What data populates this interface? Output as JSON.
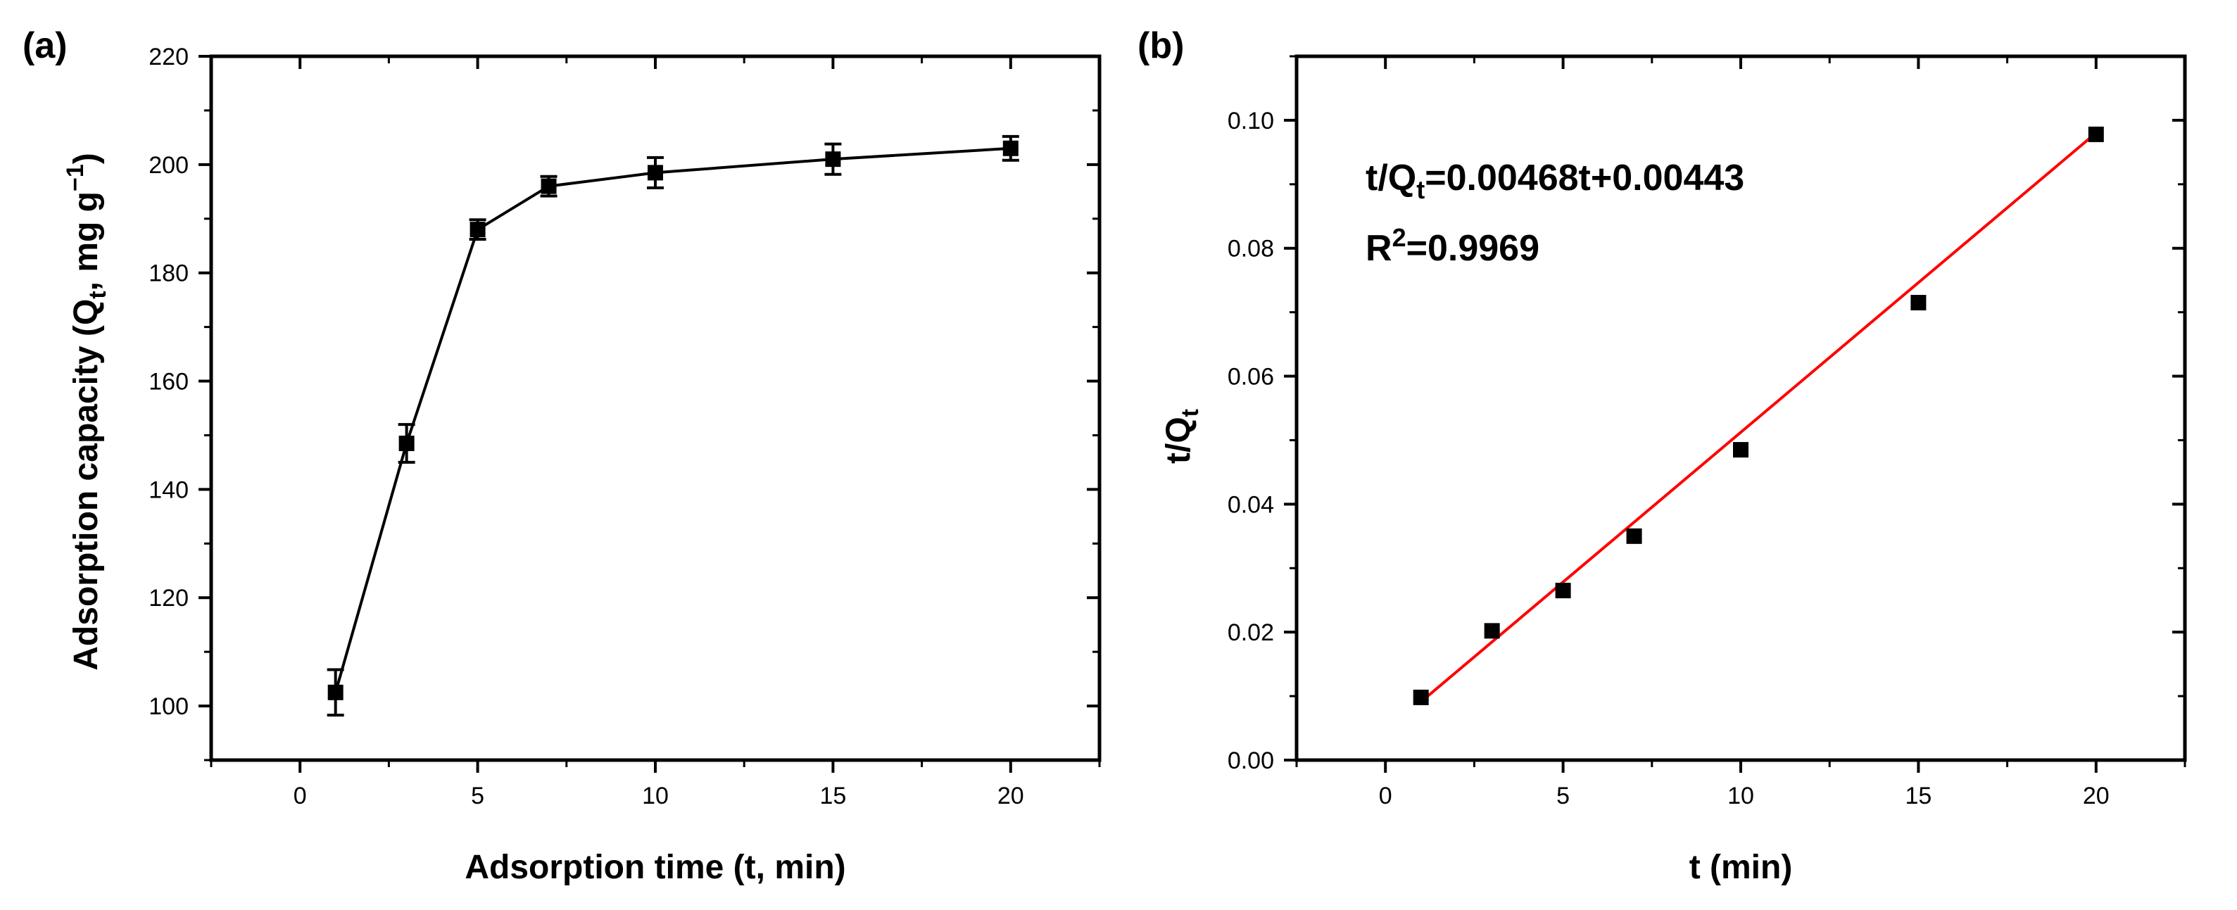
{
  "chart_data": [
    {
      "type": "line",
      "panel_label": "(a)",
      "title": "",
      "xlabel": "Adsorption time (t, min)",
      "ylabel": "Adsorption capacity (Q",
      "ylabel_sub": "t",
      "ylabel_rest": ", mg g",
      "ylabel_sup": "−1",
      "ylabel_close": ")",
      "xlim": [
        -2.5,
        22.5
      ],
      "ylim": [
        90,
        220
      ],
      "xticks": [
        0,
        5,
        10,
        15,
        20
      ],
      "yticks": [
        100,
        120,
        140,
        160,
        180,
        200,
        220
      ],
      "xtick_labels": [
        "0",
        "5",
        "10",
        "15",
        "20"
      ],
      "ytick_labels": [
        "100",
        "120",
        "140",
        "160",
        "180",
        "200",
        "220"
      ],
      "grid": false,
      "series": [
        {
          "name": "Qt",
          "x": [
            1,
            3,
            5,
            7,
            10,
            15,
            20
          ],
          "y": [
            102.5,
            148.5,
            188,
            196,
            198.5,
            201,
            203
          ],
          "yerr": [
            4.2,
            3.5,
            1.8,
            1.8,
            2.8,
            2.8,
            2.2
          ],
          "color": "#000000",
          "marker": "square"
        }
      ]
    },
    {
      "type": "scatter",
      "panel_label": "(b)",
      "title": "",
      "xlabel": "t (min)",
      "ylabel": "t/Q",
      "ylabel_sub": "t",
      "xlim": [
        -2.5,
        22.5
      ],
      "ylim": [
        0,
        0.11
      ],
      "xticks": [
        0,
        5,
        10,
        15,
        20
      ],
      "yticks": [
        0,
        0.02,
        0.04,
        0.06,
        0.08,
        0.1
      ],
      "xtick_labels": [
        "0",
        "5",
        "10",
        "15",
        "20"
      ],
      "ytick_labels": [
        "0.00",
        "0.02",
        "0.04",
        "0.06",
        "0.08",
        "0.10"
      ],
      "grid": false,
      "series": [
        {
          "name": "t/Qt",
          "x": [
            1,
            3,
            5,
            7,
            10,
            15,
            20
          ],
          "y": [
            0.0098,
            0.0202,
            0.0265,
            0.035,
            0.0485,
            0.0715,
            0.0978
          ],
          "color": "#000000",
          "marker": "square"
        }
      ],
      "fit": {
        "slope": 0.00468,
        "intercept": 0.00443,
        "x_range": [
          1,
          20
        ],
        "color": "#ff0000"
      },
      "annotation": {
        "eq_prefix": "t/Q",
        "eq_sub": "t",
        "eq_suffix": "=0.00468t+0.00443",
        "r2_prefix": "R",
        "r2_sup": "2",
        "r2_suffix": "=0.9969"
      }
    }
  ]
}
